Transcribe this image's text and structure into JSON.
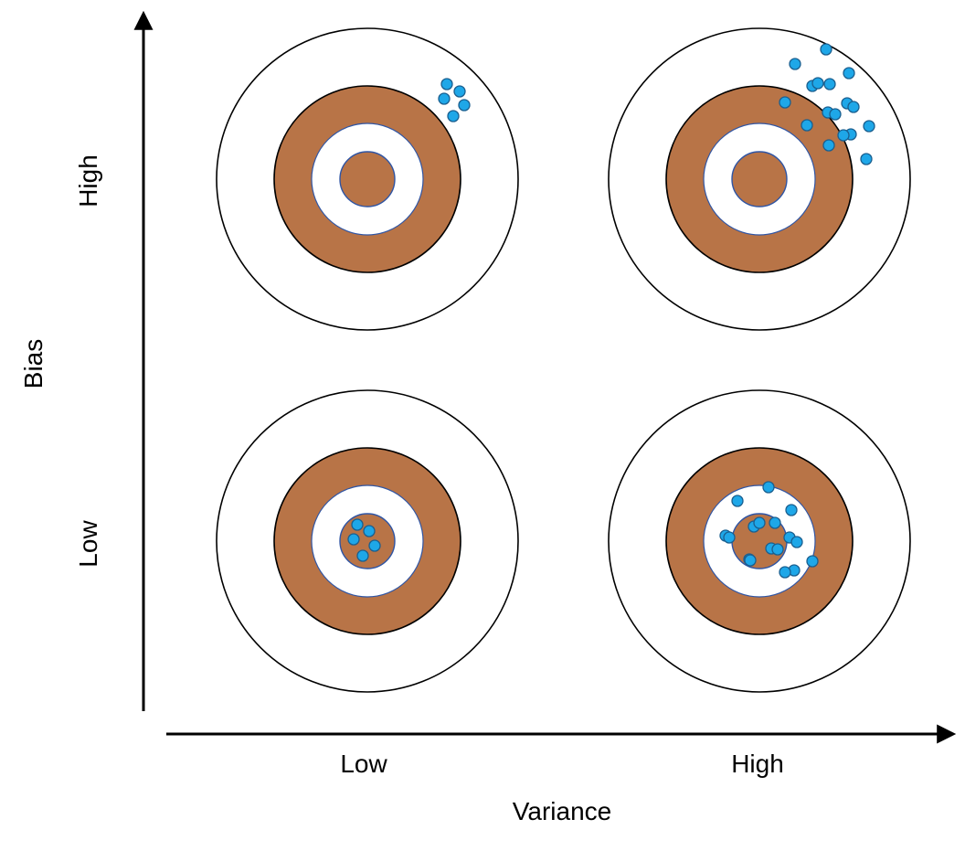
{
  "axes": {
    "x_title": "Variance",
    "y_title": "Bias",
    "x_ticks": [
      "Low",
      "High"
    ],
    "y_ticks": [
      "High",
      "Low"
    ]
  },
  "colors": {
    "ring": "#b87447",
    "dot_fill": "#1ea7e8",
    "dot_stroke": "#1a5f8f",
    "outline": "#000000",
    "bullseye_edge": "#2f55a4"
  },
  "targets": [
    {
      "id": "high-bias-low-variance",
      "bias": "High",
      "variance": "Low",
      "hit_count": 5
    },
    {
      "id": "high-bias-high-variance",
      "bias": "High",
      "variance": "High",
      "hit_count": 17
    },
    {
      "id": "low-bias-low-variance",
      "bias": "Low",
      "variance": "Low",
      "hit_count": 5
    },
    {
      "id": "low-bias-high-variance",
      "bias": "Low",
      "variance": "High",
      "hit_count": 17
    }
  ]
}
